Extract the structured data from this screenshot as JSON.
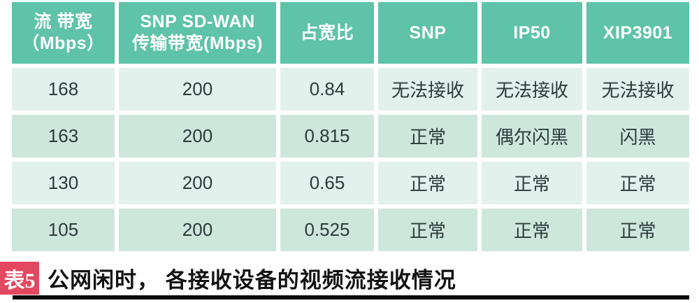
{
  "chart_data": {
    "type": "table",
    "title": "公网闲时，各接收设备的视频流接收情况",
    "columns": [
      "流 带宽（Mbps）",
      "SNP SD-WAN 传输带宽(Mbps)",
      "占宽比",
      "SNP",
      "IP50",
      "XIP3901"
    ],
    "rows": [
      [
        "168",
        "200",
        "0.84",
        "无法接收",
        "无法接收",
        "无法接收"
      ],
      [
        "163",
        "200",
        "0.815",
        "正常",
        "偶尔闪黑",
        "闪黑"
      ],
      [
        "130",
        "200",
        "0.65",
        "正常",
        "正常",
        "正常"
      ],
      [
        "105",
        "200",
        "0.525",
        "正常",
        "正常",
        "正常"
      ]
    ]
  },
  "table": {
    "header_bg": "#5ec3a8",
    "header_text_color": "#ffffff",
    "row_light_bg": "#e2f1ec",
    "row_dark_bg": "#cde7dd",
    "body_text_color": "#2d3b3b",
    "headers": [
      {
        "line1": "流 带宽",
        "line2": "（Mbps）"
      },
      {
        "line1": "SNP SD-WAN",
        "line2": "传输带宽(Mbps)"
      },
      {
        "line1": "占宽比"
      },
      {
        "line1": "SNP"
      },
      {
        "line1": "IP50"
      },
      {
        "line1": "XIP3901"
      }
    ],
    "rows": [
      [
        "168",
        "200",
        "0.84",
        "无法接收",
        "无法接收",
        "无法接收"
      ],
      [
        "163",
        "200",
        "0.815",
        "正常",
        "偶尔闪黑",
        "闪黑"
      ],
      [
        "130",
        "200",
        "0.65",
        "正常",
        "正常",
        "正常"
      ],
      [
        "105",
        "200",
        "0.525",
        "正常",
        "正常",
        "正常"
      ]
    ]
  },
  "caption": {
    "badge_label": "表5",
    "badge_color": "#e2485f",
    "text": "公网闲时， 各接收设备的视频流接收情况"
  }
}
